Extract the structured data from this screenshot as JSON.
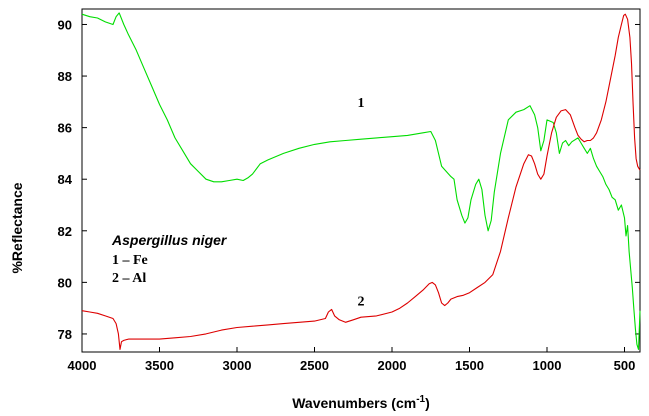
{
  "chart_data": {
    "type": "line",
    "xlabel_main": "Wavenumbers (cm",
    "xlabel_sup": "-1",
    "xlabel_close": ")",
    "ylabel": "%Reflectance",
    "xlim": [
      4000,
      400
    ],
    "ylim": [
      77.3,
      90.6
    ],
    "x_ticks": [
      4000,
      3500,
      3000,
      2500,
      2000,
      1500,
      1000,
      500
    ],
    "y_ticks": [
      78,
      80,
      82,
      84,
      86,
      88,
      90
    ],
    "annotation": {
      "title": "Aspergillus niger",
      "lines": [
        "1 – Fe",
        "2 – Al"
      ]
    },
    "series": [
      {
        "label": "1",
        "label_pos": [
          2200,
          86.8
        ],
        "color": "#00dd00",
        "points": [
          [
            4000,
            90.4
          ],
          [
            3950,
            90.3
          ],
          [
            3900,
            90.25
          ],
          [
            3850,
            90.1
          ],
          [
            3800,
            90.0
          ],
          [
            3780,
            90.3
          ],
          [
            3760,
            90.45
          ],
          [
            3730,
            90.0
          ],
          [
            3700,
            89.6
          ],
          [
            3650,
            89.0
          ],
          [
            3600,
            88.3
          ],
          [
            3550,
            87.6
          ],
          [
            3500,
            86.9
          ],
          [
            3450,
            86.3
          ],
          [
            3400,
            85.6
          ],
          [
            3350,
            85.1
          ],
          [
            3300,
            84.6
          ],
          [
            3250,
            84.3
          ],
          [
            3200,
            84.0
          ],
          [
            3150,
            83.9
          ],
          [
            3100,
            83.9
          ],
          [
            3050,
            83.95
          ],
          [
            3000,
            84.0
          ],
          [
            2960,
            83.95
          ],
          [
            2930,
            84.05
          ],
          [
            2900,
            84.2
          ],
          [
            2850,
            84.6
          ],
          [
            2800,
            84.75
          ],
          [
            2700,
            85.0
          ],
          [
            2600,
            85.2
          ],
          [
            2500,
            85.35
          ],
          [
            2400,
            85.45
          ],
          [
            2300,
            85.5
          ],
          [
            2200,
            85.55
          ],
          [
            2100,
            85.6
          ],
          [
            2000,
            85.65
          ],
          [
            1900,
            85.7
          ],
          [
            1800,
            85.8
          ],
          [
            1750,
            85.85
          ],
          [
            1720,
            85.5
          ],
          [
            1700,
            85.0
          ],
          [
            1680,
            84.5
          ],
          [
            1650,
            84.3
          ],
          [
            1620,
            84.1
          ],
          [
            1600,
            84.0
          ],
          [
            1580,
            83.2
          ],
          [
            1550,
            82.6
          ],
          [
            1530,
            82.3
          ],
          [
            1510,
            82.5
          ],
          [
            1490,
            83.2
          ],
          [
            1460,
            83.8
          ],
          [
            1440,
            84.0
          ],
          [
            1420,
            83.6
          ],
          [
            1400,
            82.6
          ],
          [
            1380,
            82.0
          ],
          [
            1360,
            82.4
          ],
          [
            1340,
            83.5
          ],
          [
            1300,
            85.0
          ],
          [
            1250,
            86.3
          ],
          [
            1200,
            86.6
          ],
          [
            1150,
            86.7
          ],
          [
            1110,
            86.85
          ],
          [
            1080,
            86.5
          ],
          [
            1060,
            86.0
          ],
          [
            1040,
            85.1
          ],
          [
            1020,
            85.5
          ],
          [
            1000,
            86.3
          ],
          [
            960,
            86.2
          ],
          [
            940,
            85.8
          ],
          [
            920,
            85.0
          ],
          [
            900,
            85.4
          ],
          [
            880,
            85.5
          ],
          [
            860,
            85.3
          ],
          [
            840,
            85.45
          ],
          [
            800,
            85.6
          ],
          [
            780,
            85.4
          ],
          [
            760,
            85.2
          ],
          [
            740,
            85.0
          ],
          [
            720,
            85.2
          ],
          [
            700,
            84.8
          ],
          [
            680,
            84.5
          ],
          [
            660,
            84.3
          ],
          [
            640,
            84.1
          ],
          [
            620,
            83.8
          ],
          [
            600,
            83.6
          ],
          [
            580,
            83.3
          ],
          [
            560,
            83.2
          ],
          [
            540,
            82.8
          ],
          [
            520,
            83.0
          ],
          [
            500,
            82.5
          ],
          [
            490,
            81.8
          ],
          [
            480,
            82.2
          ],
          [
            470,
            81.2
          ],
          [
            460,
            80.5
          ],
          [
            450,
            79.8
          ],
          [
            440,
            79.0
          ],
          [
            430,
            78.2
          ],
          [
            420,
            77.6
          ],
          [
            410,
            77.4
          ],
          [
            400,
            78.9
          ]
        ]
      },
      {
        "label": "2",
        "label_pos": [
          2200,
          79.1
        ],
        "color": "#dd0000",
        "points": [
          [
            4000,
            78.9
          ],
          [
            3950,
            78.85
          ],
          [
            3900,
            78.8
          ],
          [
            3850,
            78.7
          ],
          [
            3800,
            78.6
          ],
          [
            3780,
            78.4
          ],
          [
            3765,
            78.0
          ],
          [
            3755,
            77.4
          ],
          [
            3745,
            77.7
          ],
          [
            3730,
            77.75
          ],
          [
            3700,
            77.8
          ],
          [
            3600,
            77.8
          ],
          [
            3500,
            77.8
          ],
          [
            3400,
            77.85
          ],
          [
            3300,
            77.9
          ],
          [
            3200,
            78.0
          ],
          [
            3100,
            78.15
          ],
          [
            3000,
            78.25
          ],
          [
            2900,
            78.3
          ],
          [
            2800,
            78.35
          ],
          [
            2700,
            78.4
          ],
          [
            2600,
            78.45
          ],
          [
            2500,
            78.5
          ],
          [
            2430,
            78.6
          ],
          [
            2410,
            78.85
          ],
          [
            2390,
            78.95
          ],
          [
            2370,
            78.7
          ],
          [
            2340,
            78.55
          ],
          [
            2300,
            78.45
          ],
          [
            2250,
            78.55
          ],
          [
            2200,
            78.65
          ],
          [
            2100,
            78.7
          ],
          [
            2000,
            78.85
          ],
          [
            1950,
            79.0
          ],
          [
            1900,
            79.2
          ],
          [
            1850,
            79.45
          ],
          [
            1800,
            79.7
          ],
          [
            1760,
            79.95
          ],
          [
            1740,
            80.0
          ],
          [
            1720,
            79.9
          ],
          [
            1700,
            79.6
          ],
          [
            1680,
            79.2
          ],
          [
            1660,
            79.1
          ],
          [
            1640,
            79.2
          ],
          [
            1620,
            79.35
          ],
          [
            1580,
            79.45
          ],
          [
            1540,
            79.5
          ],
          [
            1500,
            79.6
          ],
          [
            1450,
            79.8
          ],
          [
            1400,
            80.0
          ],
          [
            1350,
            80.3
          ],
          [
            1300,
            81.2
          ],
          [
            1250,
            82.5
          ],
          [
            1200,
            83.7
          ],
          [
            1150,
            84.6
          ],
          [
            1120,
            84.95
          ],
          [
            1100,
            84.9
          ],
          [
            1080,
            84.6
          ],
          [
            1060,
            84.2
          ],
          [
            1040,
            84.0
          ],
          [
            1020,
            84.2
          ],
          [
            1000,
            84.9
          ],
          [
            970,
            85.8
          ],
          [
            940,
            86.4
          ],
          [
            910,
            86.65
          ],
          [
            880,
            86.7
          ],
          [
            850,
            86.5
          ],
          [
            820,
            86.0
          ],
          [
            800,
            85.7
          ],
          [
            780,
            85.55
          ],
          [
            760,
            85.45
          ],
          [
            740,
            85.5
          ],
          [
            720,
            85.5
          ],
          [
            700,
            85.6
          ],
          [
            680,
            85.8
          ],
          [
            650,
            86.3
          ],
          [
            620,
            87.0
          ],
          [
            600,
            87.6
          ],
          [
            580,
            88.2
          ],
          [
            560,
            88.8
          ],
          [
            540,
            89.5
          ],
          [
            520,
            90.0
          ],
          [
            505,
            90.35
          ],
          [
            495,
            90.4
          ],
          [
            480,
            90.2
          ],
          [
            465,
            89.5
          ],
          [
            455,
            88.5
          ],
          [
            445,
            87.0
          ],
          [
            435,
            85.6
          ],
          [
            425,
            84.8
          ],
          [
            415,
            84.5
          ],
          [
            405,
            84.4
          ],
          [
            400,
            84.35
          ]
        ]
      }
    ]
  }
}
